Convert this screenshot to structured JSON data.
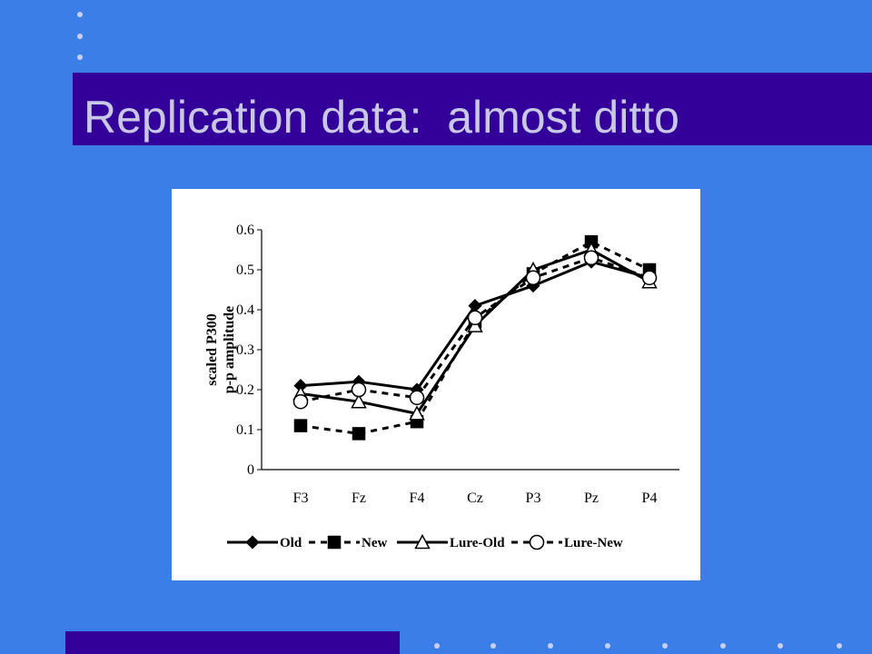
{
  "slide": {
    "title": "Replication data:  almost ditto"
  },
  "chart_data": {
    "type": "line",
    "y_label": [
      "scaled P300",
      "p-p amplitude"
    ],
    "categories": [
      "F3",
      "Fz",
      "F4",
      "Cz",
      "P3",
      "Pz",
      "P4"
    ],
    "ylim": [
      0,
      0.6
    ],
    "yticks": [
      0,
      0.1,
      0.2,
      0.3,
      0.4,
      0.5,
      0.6
    ],
    "series": [
      {
        "name": "Old",
        "color": "#000000",
        "marker": "diamond",
        "line_style": "solid",
        "values": [
          0.21,
          0.22,
          0.2,
          0.41,
          0.46,
          0.52,
          0.48
        ]
      },
      {
        "name": "New",
        "color": "#000000",
        "marker": "square",
        "line_style": "dashed",
        "values": [
          0.11,
          0.09,
          0.12,
          0.37,
          0.49,
          0.57,
          0.5
        ]
      },
      {
        "name": "Lure-Old",
        "color": "#000000",
        "marker": "triangle",
        "line_style": "solid",
        "values": [
          0.19,
          0.17,
          0.14,
          0.36,
          0.5,
          0.55,
          0.47
        ]
      },
      {
        "name": "Lure-New",
        "color": "#000000",
        "marker": "circle",
        "line_style": "dashed",
        "values": [
          0.17,
          0.2,
          0.18,
          0.38,
          0.48,
          0.53,
          0.48
        ]
      }
    ]
  }
}
